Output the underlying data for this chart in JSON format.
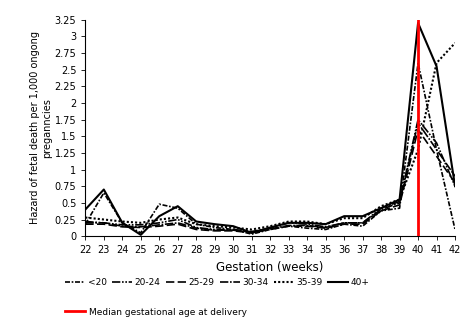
{
  "x": [
    22,
    23,
    24,
    25,
    26,
    27,
    28,
    29,
    30,
    31,
    32,
    33,
    34,
    35,
    36,
    37,
    38,
    39,
    40,
    41,
    42
  ],
  "series": {
    "<20": [
      0.18,
      0.65,
      0.2,
      0.05,
      0.48,
      0.42,
      0.18,
      0.13,
      0.1,
      0.03,
      0.1,
      0.15,
      0.12,
      0.1,
      0.18,
      0.15,
      0.38,
      0.42,
      2.6,
      1.3,
      0.1
    ],
    "20-24": [
      0.22,
      0.2,
      0.17,
      0.17,
      0.2,
      0.25,
      0.13,
      0.1,
      0.1,
      0.07,
      0.12,
      0.2,
      0.18,
      0.14,
      0.2,
      0.2,
      0.42,
      0.52,
      1.75,
      1.4,
      0.75
    ],
    "25-29": [
      0.18,
      0.18,
      0.14,
      0.13,
      0.15,
      0.18,
      0.1,
      0.08,
      0.08,
      0.05,
      0.1,
      0.15,
      0.15,
      0.12,
      0.18,
      0.18,
      0.38,
      0.47,
      1.6,
      1.2,
      0.8
    ],
    "30-34": [
      0.2,
      0.2,
      0.15,
      0.14,
      0.17,
      0.2,
      0.12,
      0.09,
      0.09,
      0.06,
      0.11,
      0.16,
      0.16,
      0.13,
      0.2,
      0.2,
      0.4,
      0.5,
      1.7,
      1.3,
      0.9
    ],
    "35-39": [
      0.28,
      0.25,
      0.22,
      0.2,
      0.25,
      0.28,
      0.18,
      0.15,
      0.13,
      0.1,
      0.15,
      0.22,
      0.22,
      0.18,
      0.27,
      0.27,
      0.45,
      0.55,
      1.3,
      2.6,
      2.9
    ],
    "40+": [
      0.4,
      0.7,
      0.2,
      0.02,
      0.3,
      0.45,
      0.22,
      0.18,
      0.15,
      0.05,
      0.13,
      0.2,
      0.2,
      0.18,
      0.3,
      0.3,
      0.42,
      0.55,
      3.2,
      2.55,
      0.75
    ]
  },
  "red_line_x": 40,
  "ylim": [
    0,
    3.25
  ],
  "yticks": [
    0,
    0.25,
    0.5,
    0.75,
    1.0,
    1.25,
    1.5,
    1.75,
    2.0,
    2.25,
    2.5,
    2.75,
    3.0,
    3.25
  ],
  "ytick_labels": [
    "0",
    "0.25",
    "0.5",
    "0.75",
    "1",
    "1.25",
    "1.5",
    "1.75",
    "2",
    "2.25",
    "2.5",
    "2.75",
    "3",
    "3.25"
  ],
  "xlabel": "Gestation (weeks)",
  "ylabel": "Hazard of fetal death per 1,000 ongong\npreganncies",
  "legend_label_median": "Median gestational age at delivery",
  "styles": {
    "<20": {
      "ls": "dashdotdot",
      "lw": 1.2
    },
    "20-24": {
      "ls": "dashdotdot2",
      "lw": 1.2
    },
    "25-29": {
      "ls": "dashed",
      "lw": 1.2
    },
    "30-34": {
      "ls": "dashdot",
      "lw": 1.2
    },
    "35-39": {
      "ls": "dotted",
      "lw": 1.5
    },
    "40+": {
      "ls": "solid",
      "lw": 1.5
    }
  }
}
